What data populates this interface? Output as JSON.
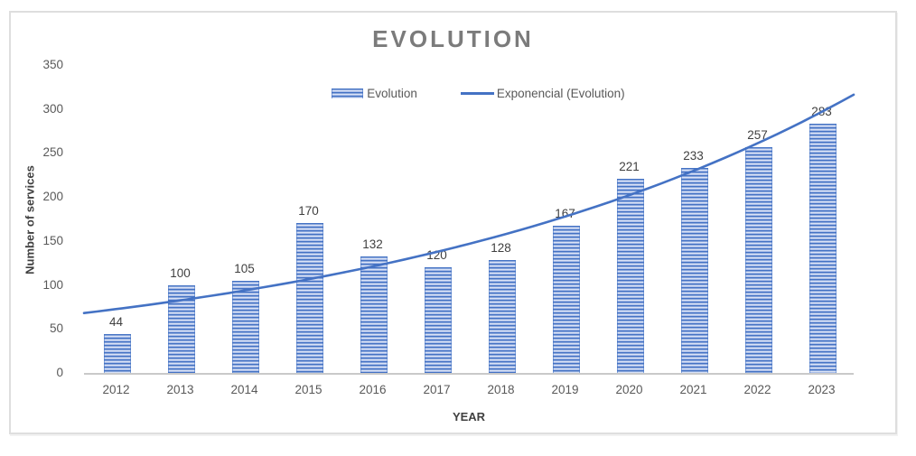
{
  "chart": {
    "title": "EVOLUTION",
    "y_axis_title": "Number of services",
    "x_axis_title": "YEAR",
    "legend": {
      "bar_label": "Evolution",
      "line_label": "Exponencial (Evolution)"
    }
  },
  "chart_data": {
    "type": "bar",
    "title": "EVOLUTION",
    "categories": [
      "2012",
      "2013",
      "2014",
      "2015",
      "2016",
      "2017",
      "2018",
      "2019",
      "2020",
      "2021",
      "2022",
      "2023"
    ],
    "series": [
      {
        "name": "Evolution",
        "values": [
          44,
          100,
          105,
          170,
          132,
          120,
          128,
          167,
          221,
          233,
          257,
          283
        ]
      }
    ],
    "trendline": {
      "name": "Exponencial (Evolution)",
      "type": "exponential",
      "a": 63.8,
      "b": 0.12807,
      "x_domain": [
        0.5,
        12.5
      ]
    },
    "xlabel": "YEAR",
    "ylabel": "Number of services",
    "ylim": [
      0,
      350
    ],
    "ytick_step": 50,
    "grid": false,
    "data_labels": true,
    "legend_position": "top-center",
    "colors": {
      "bar": "#4472C4",
      "bar_stripe_light": "#F2F5FC",
      "trendline": "#4472C4",
      "title": "#7B7B7B",
      "value_label": "#3F3F3F",
      "tick_label": "#595959",
      "axis_title": "#404040",
      "axis_line": "#C9C9C9",
      "chart_border": "#DEDEDE",
      "background": "#FFFFFF"
    }
  }
}
